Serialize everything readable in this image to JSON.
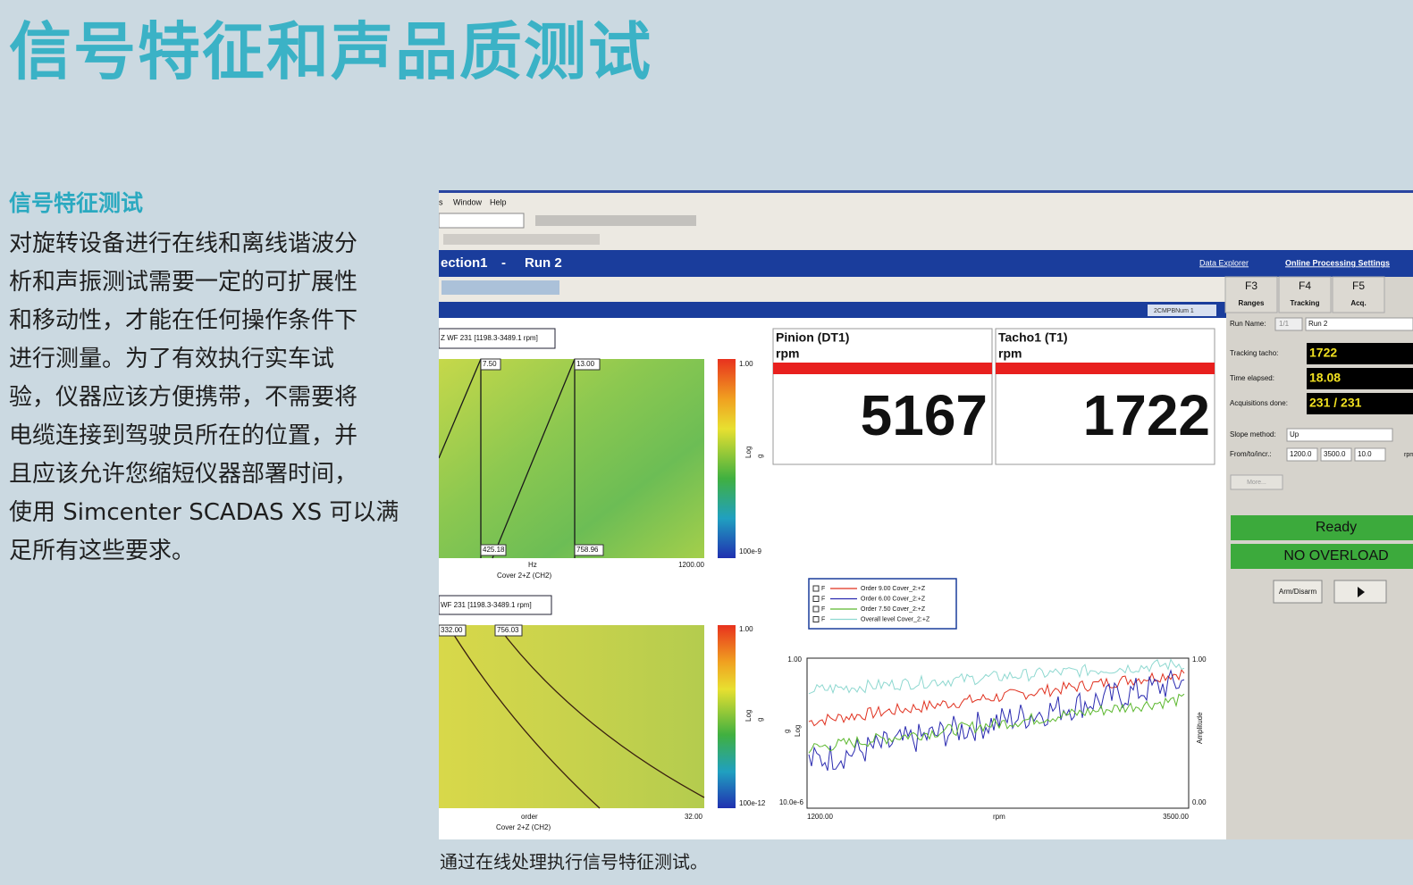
{
  "header": {
    "title": "信号特征和声品质测试"
  },
  "section": {
    "heading": "信号特征测试",
    "lines": [
      "对旋转设备进行在线和离线谐波分",
      "析和声振测试需要一定的可扩展性",
      "和移动性，才能在任何操作条件下",
      "进行测量。为了有效执行实车试",
      "验，仪器应该方便携带，不需要将",
      "电缆连接到驾驶员所在的位置，并",
      "且应该允许您缩短仪器部署时间，",
      "使用 Simcenter SCADAS XS 可以满",
      "足所有这些要求。"
    ]
  },
  "caption": "通过在线处理执行信号特征测试。",
  "screenshot": {
    "menu": [
      "s",
      "Window",
      "Help"
    ],
    "title_bar": [
      "ection1",
      "-",
      "Run 2"
    ],
    "links": [
      "Data Explorer",
      "Online Processing Settings"
    ],
    "function_keys": [
      {
        "key": "F3",
        "label": "Ranges"
      },
      {
        "key": "F4",
        "label": "Tracking"
      },
      {
        "key": "F5",
        "label": "Acq."
      }
    ],
    "dropdown": "2CMPBNum 1",
    "run_name": {
      "label": "Run Name:",
      "counter": "1/1",
      "value": "Run 2"
    },
    "status_rows": [
      {
        "label": "Tracking tacho:",
        "value": "1722"
      },
      {
        "label": "Time elapsed:",
        "value": "18.08"
      },
      {
        "label": "Acquisitions done:",
        "value": "231 / 231"
      }
    ],
    "slope": {
      "label": "Slope method:",
      "value": "Up"
    },
    "from_to": {
      "label": "From/to/incr.:",
      "values": [
        "1200.0",
        "3500.0",
        "10.0"
      ],
      "unit": "rpm"
    },
    "more": "More...",
    "ready": "Ready",
    "overload": "NO OVERLOAD",
    "arm": "Arm/Disarm",
    "displays": [
      {
        "name": "Pinion (DT1)",
        "unit": "rpm",
        "value": "5167"
      },
      {
        "name": "Tacho1 (T1)",
        "unit": "rpm",
        "value": "1722"
      }
    ],
    "spectrogram_top": {
      "header": "Z WF 231 [1198.3-3489.1 rpm]",
      "cursors": [
        "7.50",
        "13.00"
      ],
      "bottom_cursors": [
        "425.18",
        "758.96"
      ],
      "x_end": "1200.00",
      "x_unit": "Hz",
      "x_label": "Cover 2+Z (CH2)",
      "scale_top": "1.00",
      "scale_bottom": "100e-9",
      "scale_label": "Log",
      "scale_unit": "g"
    },
    "spectrogram_bottom": {
      "header": "WF 231 [1198.3-3489.1 rpm]",
      "cursors": [
        "332.00",
        "756.03"
      ],
      "x_end": "32.00",
      "x_unit": "order",
      "x_label": "Cover 2+Z (CH2)",
      "scale_top": "1.00",
      "scale_bottom": "100e-12",
      "scale_label": "Log",
      "scale_unit": "g"
    },
    "order_chart": {
      "legend": [
        {
          "flag": "F",
          "name": "Order 9.00 Cover_2:+Z",
          "color": "#e0301e"
        },
        {
          "flag": "F",
          "name": "Order 6.00 Cover_2:+Z",
          "color": "#2a2ab0"
        },
        {
          "flag": "F",
          "name": "Order 7.50 Cover_2:+Z",
          "color": "#5cb82e"
        },
        {
          "flag": "F",
          "name": "Overall level Cover_2:+Z",
          "color": "#8ed8d0"
        }
      ],
      "y_top": "1.00",
      "y_bottom": "10.0e-6",
      "y_label": "g",
      "y_scale": "Log",
      "x_start": "1200.00",
      "x_end": "3500.00",
      "x_label": "rpm",
      "y2_top": "1.00",
      "y2_bottom": "0.00",
      "y2_label": "Amplitude"
    }
  }
}
